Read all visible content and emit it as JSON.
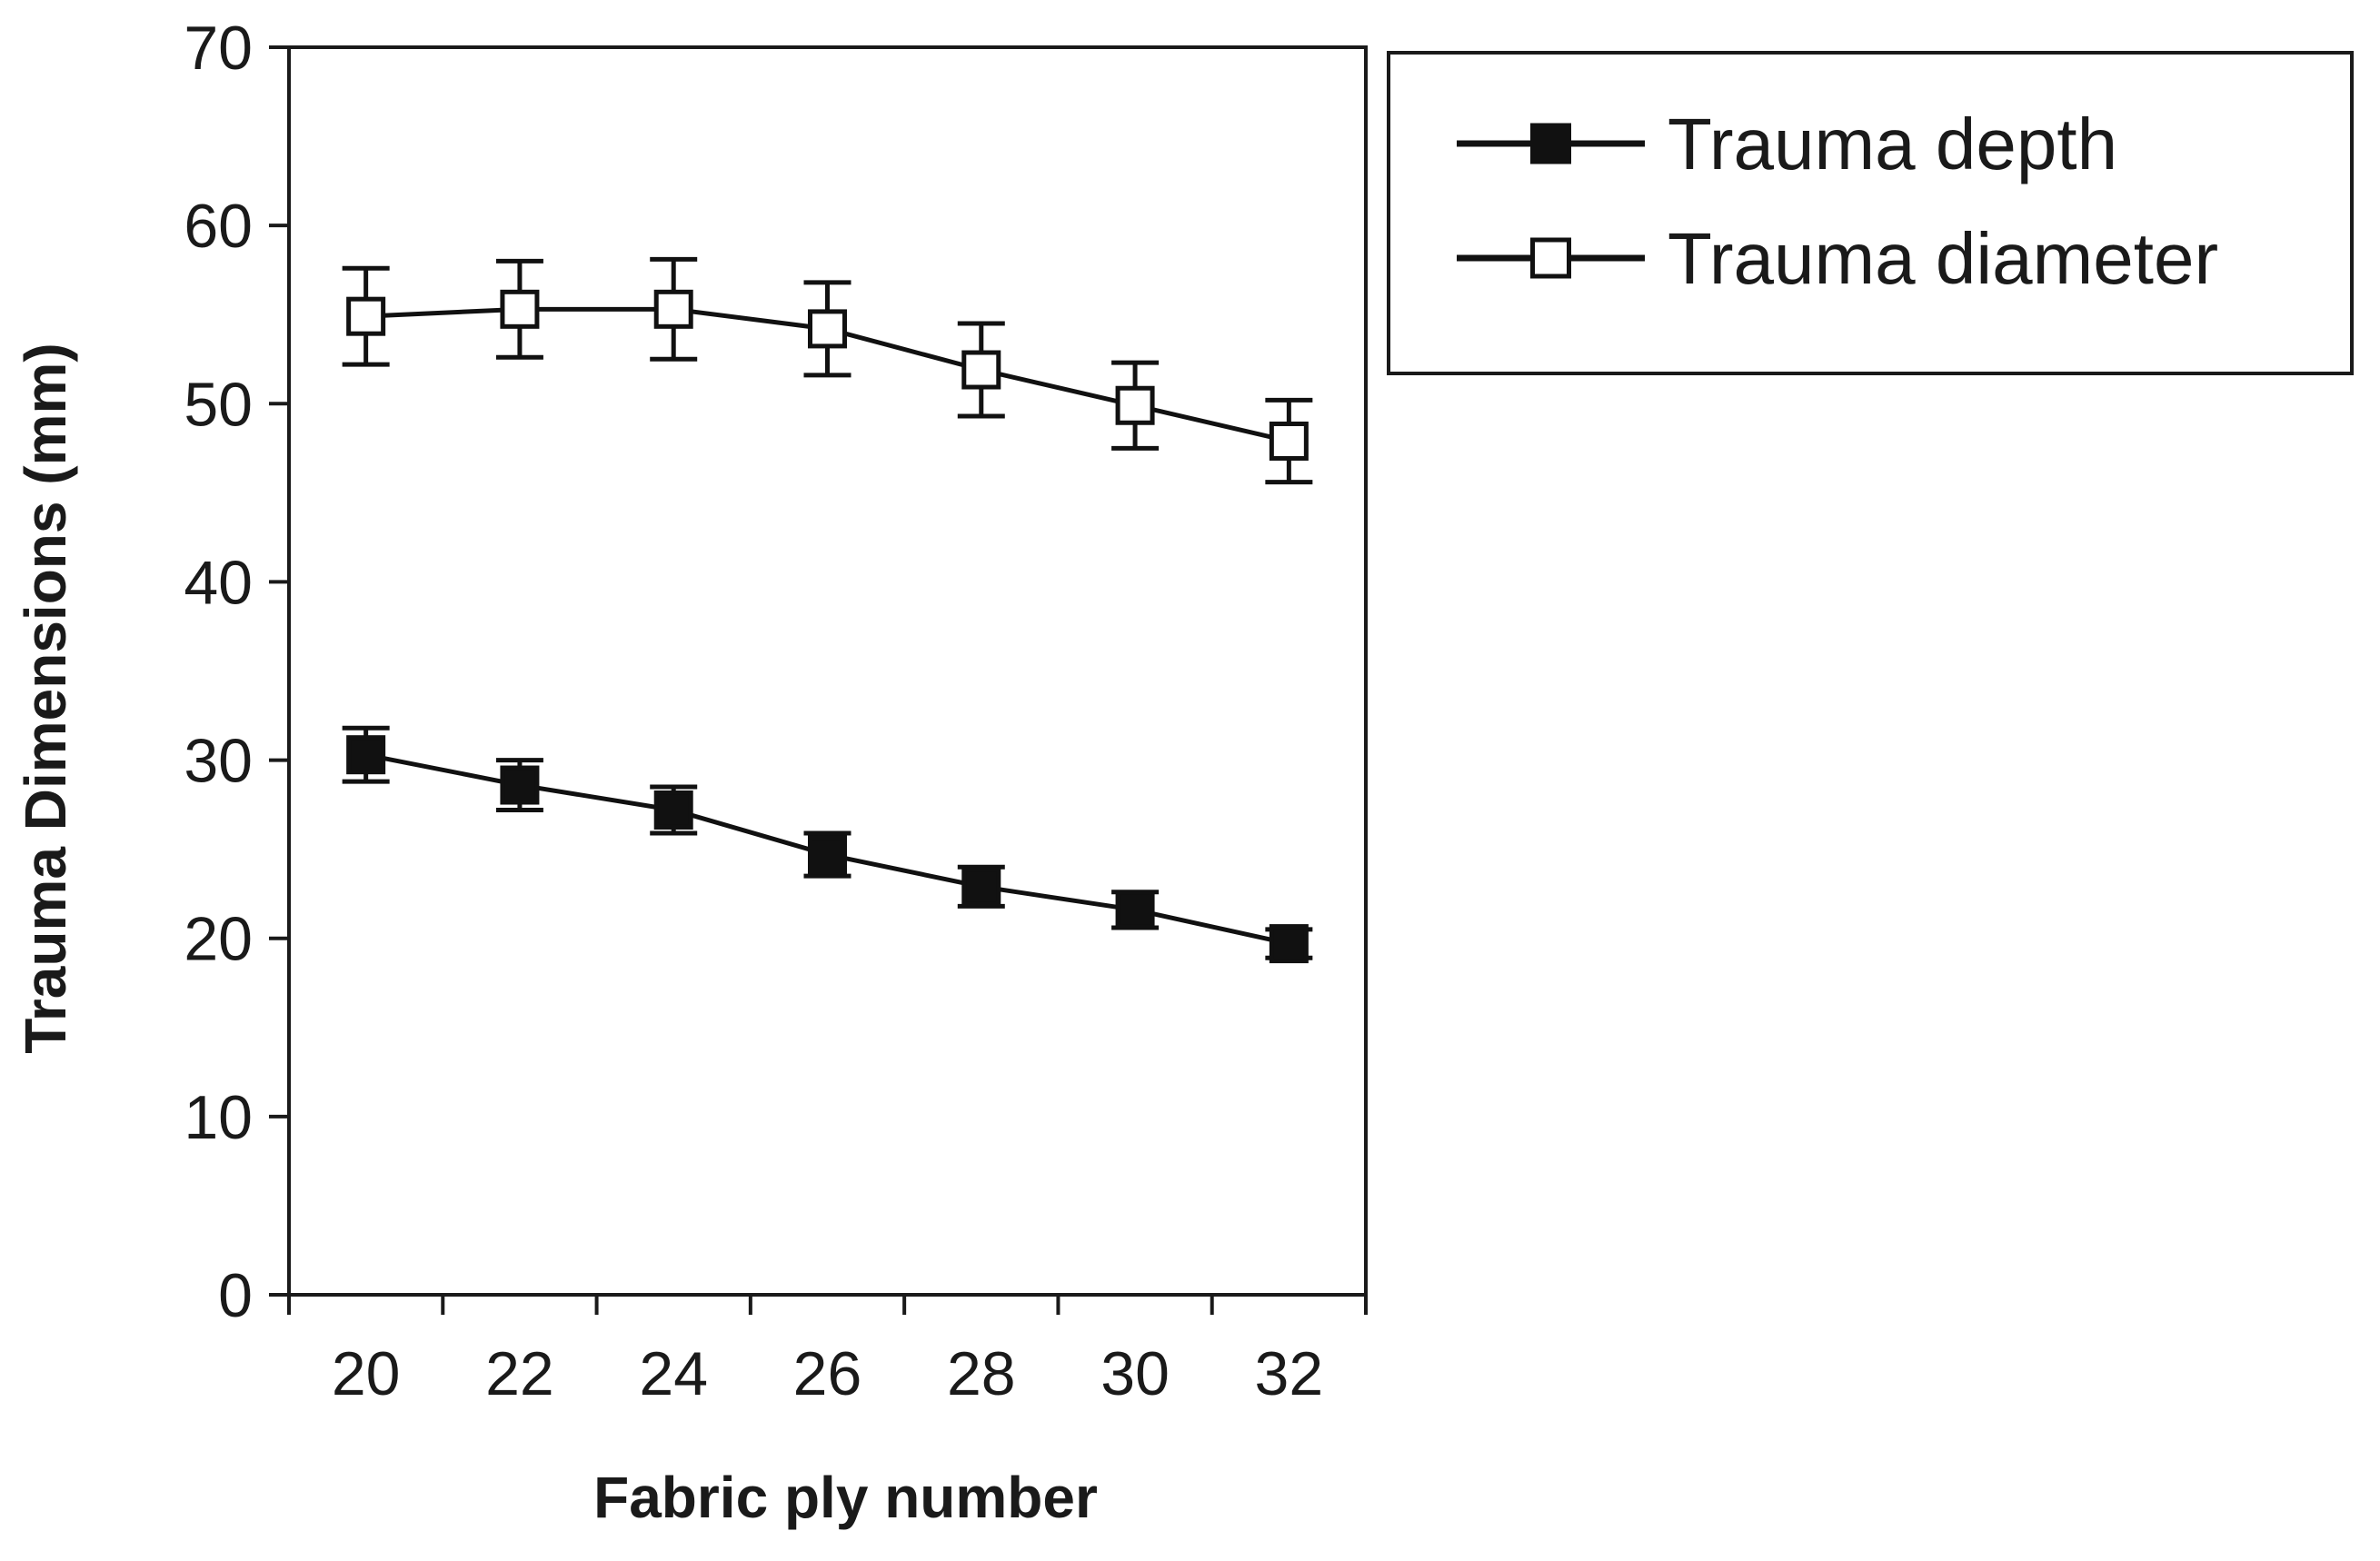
{
  "chart_data": {
    "type": "line",
    "title": "",
    "xlabel": "Fabric ply number",
    "ylabel": "Trauma Dimensions (mm)",
    "x": [
      20,
      22,
      24,
      26,
      28,
      30,
      32
    ],
    "x_tick_labels": [
      "20",
      "22",
      "24",
      "26",
      "28",
      "30",
      "32"
    ],
    "ylim": [
      0,
      70
    ],
    "y_ticks": [
      0,
      10,
      20,
      30,
      40,
      50,
      60,
      70
    ],
    "y_tick_labels": [
      "0",
      "10",
      "20",
      "30",
      "40",
      "50",
      "60",
      "70"
    ],
    "grid": false,
    "legend_position": "top-right, outside plot",
    "series": [
      {
        "name": "Trauma depth",
        "marker": "filled-square",
        "color": "#111111",
        "values": [
          30.3,
          28.6,
          27.2,
          24.7,
          22.9,
          21.6,
          19.7
        ],
        "error": [
          1.5,
          1.4,
          1.3,
          1.2,
          1.1,
          1.0,
          0.8
        ]
      },
      {
        "name": "Trauma diameter",
        "marker": "open-square",
        "color": "#111111",
        "values": [
          54.9,
          55.3,
          55.3,
          54.2,
          51.9,
          49.9,
          47.9
        ],
        "error": [
          2.7,
          2.7,
          2.8,
          2.6,
          2.6,
          2.4,
          2.3
        ]
      }
    ]
  }
}
